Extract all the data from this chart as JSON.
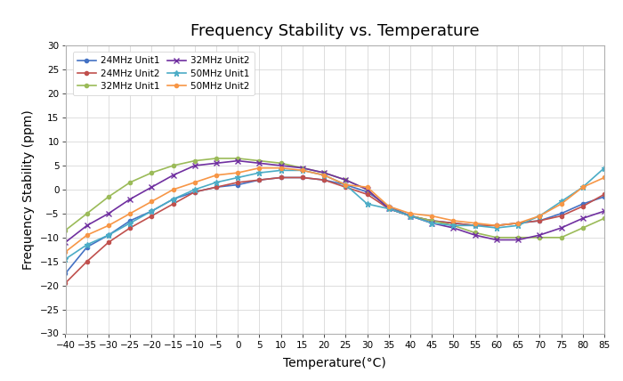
{
  "title": "Frequency Stability vs. Temperature",
  "xlabel": "Temperature(°C)",
  "ylabel": "Frequency Stability (ppm)",
  "xlim": [
    -40,
    85
  ],
  "ylim": [
    -30,
    30
  ],
  "xticks": [
    -40,
    -35,
    -30,
    -25,
    -20,
    -15,
    -10,
    -5,
    0,
    5,
    10,
    15,
    20,
    25,
    30,
    35,
    40,
    45,
    50,
    55,
    60,
    65,
    70,
    75,
    80,
    85
  ],
  "yticks": [
    -30,
    -25,
    -20,
    -15,
    -10,
    -5,
    0,
    5,
    10,
    15,
    20,
    25,
    30
  ],
  "temperature": [
    -40,
    -35,
    -30,
    -25,
    -20,
    -15,
    -10,
    -5,
    0,
    5,
    10,
    15,
    20,
    25,
    30,
    35,
    40,
    45,
    50,
    55,
    60,
    65,
    70,
    75,
    80,
    85
  ],
  "series": [
    {
      "label": "24MHz Unit1",
      "color": "#4472C4",
      "marker": "o",
      "markersize": 3,
      "linewidth": 1.2,
      "values": [
        -17.5,
        -12.0,
        -9.5,
        -6.5,
        -4.5,
        -2.0,
        -0.5,
        0.5,
        1.0,
        2.0,
        2.5,
        2.5,
        2.0,
        1.0,
        -0.5,
        -3.5,
        -5.5,
        -6.5,
        -7.0,
        -7.5,
        -7.5,
        -7.0,
        -6.5,
        -5.0,
        -3.0,
        -1.5
      ]
    },
    {
      "label": "24MHz Unit2",
      "color": "#C0504D",
      "marker": "o",
      "markersize": 3,
      "linewidth": 1.2,
      "values": [
        -19.5,
        -15.0,
        -11.0,
        -8.0,
        -5.5,
        -3.0,
        -0.5,
        0.5,
        1.5,
        2.0,
        2.5,
        2.5,
        2.0,
        0.5,
        -1.0,
        -4.0,
        -5.5,
        -6.5,
        -7.0,
        -7.5,
        -7.5,
        -7.0,
        -6.5,
        -5.5,
        -3.5,
        -1.0
      ]
    },
    {
      "label": "32MHz Unit1",
      "color": "#9BBB59",
      "marker": "o",
      "markersize": 3,
      "linewidth": 1.2,
      "values": [
        -8.5,
        -5.0,
        -1.5,
        1.5,
        3.5,
        5.0,
        6.0,
        6.5,
        6.5,
        6.0,
        5.5,
        4.5,
        3.5,
        2.0,
        0.0,
        -4.0,
        -5.5,
        -6.5,
        -7.5,
        -9.0,
        -10.0,
        -10.0,
        -10.0,
        -10.0,
        -8.0,
        -6.0
      ]
    },
    {
      "label": "32MHz Unit2",
      "color": "#7030A0",
      "marker": "x",
      "markersize": 4,
      "linewidth": 1.2,
      "values": [
        -11.0,
        -7.5,
        -5.0,
        -2.0,
        0.5,
        3.0,
        5.0,
        5.5,
        6.0,
        5.5,
        5.0,
        4.5,
        3.5,
        2.0,
        0.0,
        -4.0,
        -5.5,
        -7.0,
        -8.0,
        -9.5,
        -10.5,
        -10.5,
        -9.5,
        -8.0,
        -6.0,
        -4.5
      ]
    },
    {
      "label": "50MHz Unit1",
      "color": "#4BACC6",
      "marker": "*",
      "markersize": 5,
      "linewidth": 1.2,
      "values": [
        -14.5,
        -11.5,
        -9.5,
        -7.0,
        -4.5,
        -2.0,
        0.0,
        1.5,
        2.5,
        3.5,
        4.0,
        4.0,
        3.0,
        1.0,
        -3.0,
        -4.0,
        -5.5,
        -7.0,
        -7.5,
        -7.5,
        -8.0,
        -7.5,
        -5.5,
        -2.5,
        0.5,
        4.5
      ]
    },
    {
      "label": "50MHz Unit2",
      "color": "#F79646",
      "marker": "o",
      "markersize": 3,
      "linewidth": 1.2,
      "values": [
        -13.0,
        -9.5,
        -7.5,
        -5.0,
        -2.5,
        0.0,
        1.5,
        3.0,
        3.5,
        4.5,
        4.5,
        4.0,
        3.0,
        1.0,
        0.5,
        -3.5,
        -5.0,
        -5.5,
        -6.5,
        -7.0,
        -7.5,
        -7.0,
        -5.5,
        -3.0,
        0.5,
        2.5
      ]
    }
  ],
  "background_color": "#ffffff",
  "grid_color": "#d0d0d0",
  "title_fontsize": 13,
  "label_fontsize": 10,
  "tick_fontsize": 7.5,
  "legend_fontsize": 7.5
}
